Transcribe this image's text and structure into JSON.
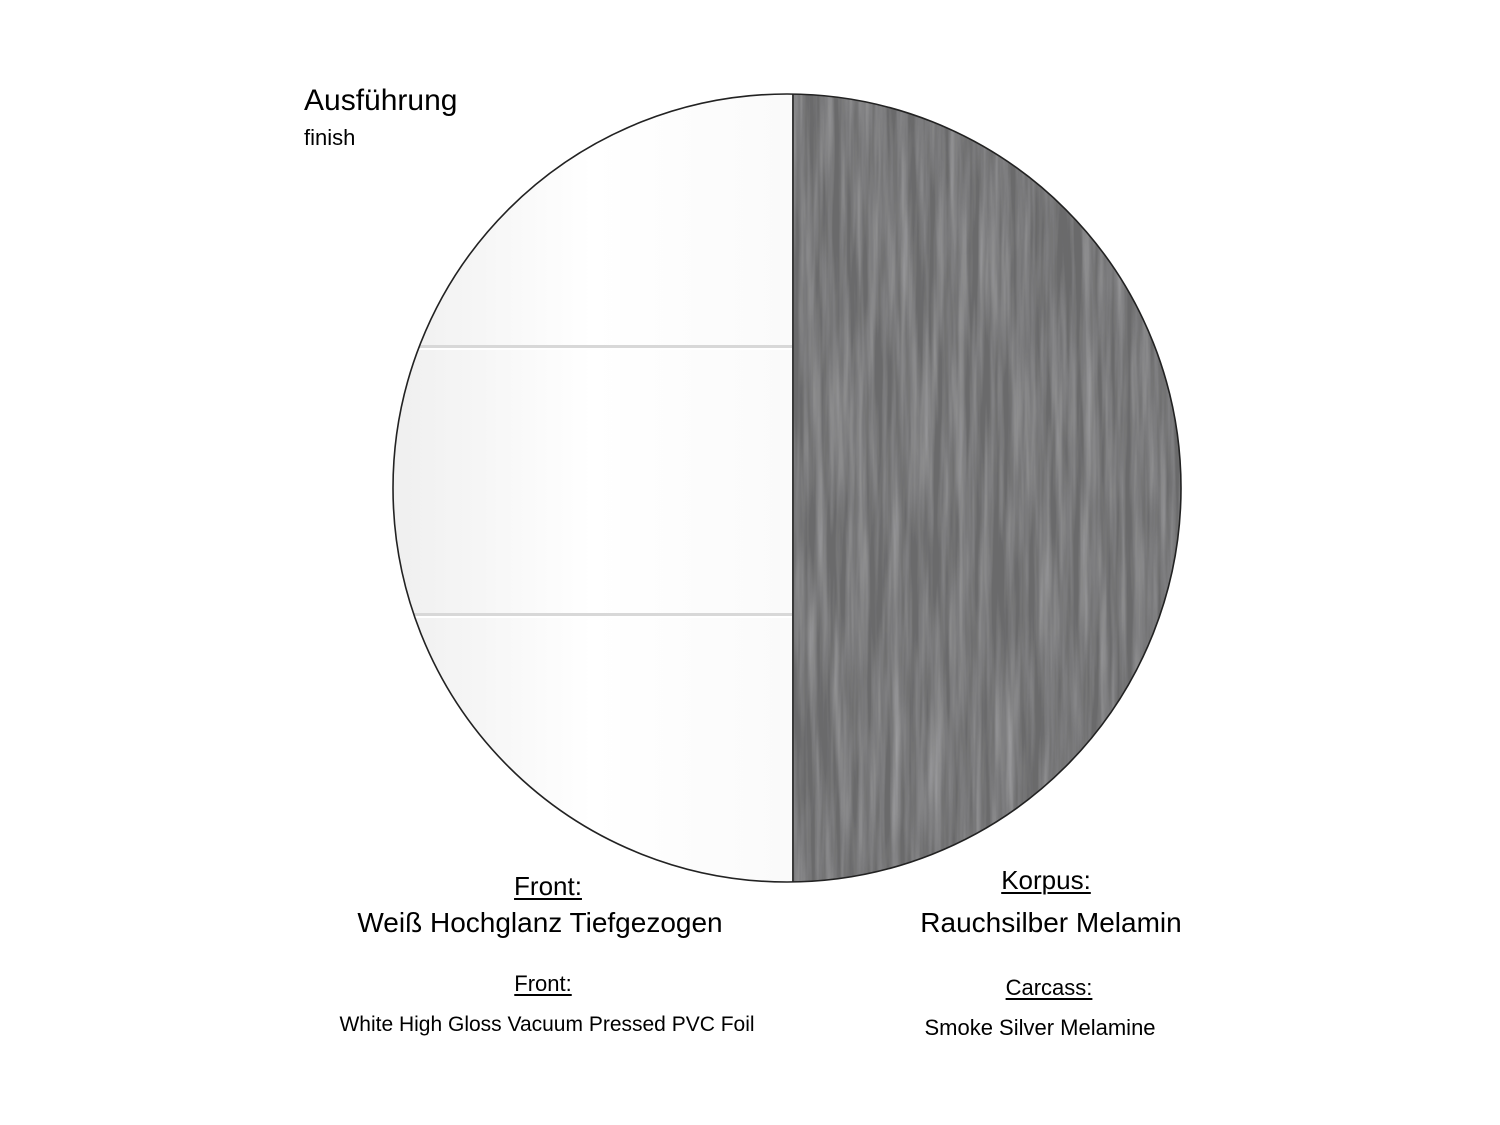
{
  "header": {
    "title": "Ausführung",
    "subtitle": "finish"
  },
  "front": {
    "label_de": "Front:",
    "value_de": "Weiß Hochglanz Tiefgezogen",
    "label_en": "Front:",
    "value_en": "White High Gloss Vacuum Pressed PVC Foil",
    "color": "#ffffff"
  },
  "carcass": {
    "label_de": "Korpus:",
    "value_de": "Rauchsilber Melamin",
    "label_en": "Carcass:",
    "value_en": "Smoke Silver Melamine",
    "color": "#5e5e5e"
  }
}
